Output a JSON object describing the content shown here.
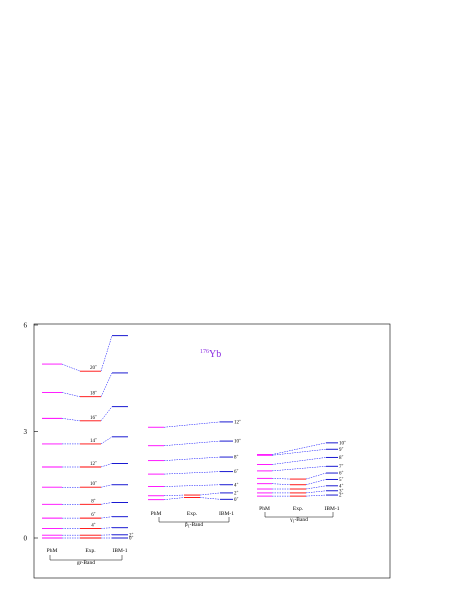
{
  "chart_data": {
    "type": "level-scheme",
    "title": "",
    "nucleus": {
      "mass": "176",
      "symbol": "Yb"
    },
    "xlabel": "",
    "ylabel": "",
    "ylim": [
      -1.0,
      6.0
    ],
    "yticks": [
      {
        "value": 0,
        "label": "0"
      },
      {
        "value": 3,
        "label": "3"
      },
      {
        "value": 6,
        "label": "6"
      }
    ],
    "columns": [
      "PhM",
      "Exp.",
      "IBM-1"
    ],
    "colors": {
      "phm": "#ff00ff",
      "exp": "#ff0000",
      "ibm": "#0000cc",
      "connector": "#0000ff",
      "nucleus": "#8a2be2"
    },
    "bands": [
      {
        "name": "gr-Band",
        "levels": [
          {
            "spin": "0+",
            "phm": 0.0,
            "exp": 0.0,
            "ibm": 0.0
          },
          {
            "spin": "2+",
            "phm": 0.08,
            "exp": 0.08,
            "ibm": 0.09
          },
          {
            "spin": "4+",
            "phm": 0.27,
            "exp": 0.27,
            "ibm": 0.29
          },
          {
            "spin": "6+",
            "phm": 0.56,
            "exp": 0.56,
            "ibm": 0.6
          },
          {
            "spin": "8+",
            "phm": 0.95,
            "exp": 0.95,
            "ibm": 1.0
          },
          {
            "spin": "10+",
            "phm": 1.43,
            "exp": 1.43,
            "ibm": 1.5
          },
          {
            "spin": "12+",
            "phm": 2.0,
            "exp": 2.0,
            "ibm": 2.1
          },
          {
            "spin": "14+",
            "phm": 2.65,
            "exp": 2.65,
            "ibm": 2.85
          },
          {
            "spin": "16+",
            "phm": 3.37,
            "exp": 3.3,
            "ibm": 3.7
          },
          {
            "spin": "18+",
            "phm": 4.1,
            "exp": 3.98,
            "ibm": 4.65
          },
          {
            "spin": "20+",
            "phm": 4.9,
            "exp": 4.7,
            "ibm": 5.7
          }
        ]
      },
      {
        "name": "β1-Band",
        "levels": [
          {
            "spin": "0+",
            "phm": 1.08,
            "exp": 1.14,
            "ibm": 1.09
          },
          {
            "spin": "2+",
            "phm": 1.19,
            "exp": 1.21,
            "ibm": 1.27
          },
          {
            "spin": "4+",
            "phm": 1.45,
            "exp": null,
            "ibm": 1.5
          },
          {
            "spin": "6+",
            "phm": 1.8,
            "exp": null,
            "ibm": 1.87
          },
          {
            "spin": "8+",
            "phm": 2.18,
            "exp": null,
            "ibm": 2.28
          },
          {
            "spin": "10+",
            "phm": 2.6,
            "exp": null,
            "ibm": 2.73
          },
          {
            "spin": "12+",
            "phm": 3.12,
            "exp": null,
            "ibm": 3.27
          }
        ]
      },
      {
        "name": "γ1-Band",
        "levels": [
          {
            "spin": "2+",
            "phm": 1.18,
            "exp": 1.18,
            "ibm": 1.21
          },
          {
            "spin": "3+",
            "phm": 1.27,
            "exp": 1.27,
            "ibm": 1.33
          },
          {
            "spin": "4+",
            "phm": 1.38,
            "exp": 1.38,
            "ibm": 1.47
          },
          {
            "spin": "5+",
            "phm": 1.53,
            "exp": 1.5,
            "ibm": 1.65
          },
          {
            "spin": "6+",
            "phm": 1.68,
            "exp": 1.66,
            "ibm": 1.83
          },
          {
            "spin": "7+",
            "phm": 1.89,
            "exp": null,
            "ibm": 2.02
          },
          {
            "spin": "8+",
            "phm": 2.07,
            "exp": null,
            "ibm": 2.27
          },
          {
            "spin": "9+",
            "phm": 2.33,
            "exp": null,
            "ibm": 2.5
          },
          {
            "spin": "10+",
            "phm": 2.35,
            "exp": null,
            "ibm": 2.68
          }
        ]
      }
    ]
  }
}
